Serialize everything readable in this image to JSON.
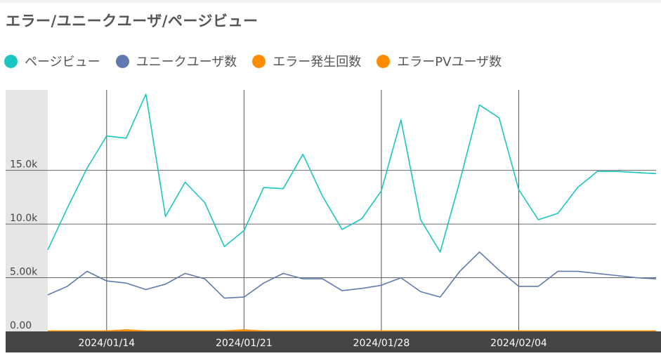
{
  "title": "エラー/ユニークユーザ/ページビュー",
  "legend": [
    {
      "label": "ページビュー",
      "color": "#1bc6c2"
    },
    {
      "label": "ユニークユーザ数",
      "color": "#6079af"
    },
    {
      "label": "エラー発生回数",
      "color": "#ff8c00"
    },
    {
      "label": "エラーPVユーザ数",
      "color": "#ff8c00"
    }
  ],
  "chart_data": {
    "type": "line",
    "x": [
      "2024-01-11",
      "2024-01-12",
      "2024-01-13",
      "2024-01-14",
      "2024-01-15",
      "2024-01-16",
      "2024-01-17",
      "2024-01-18",
      "2024-01-19",
      "2024-01-20",
      "2024-01-21",
      "2024-01-22",
      "2024-01-23",
      "2024-01-24",
      "2024-01-25",
      "2024-01-26",
      "2024-01-27",
      "2024-01-28",
      "2024-01-29",
      "2024-01-30",
      "2024-01-31",
      "2024-02-01",
      "2024-02-02",
      "2024-02-03",
      "2024-02-04",
      "2024-02-05",
      "2024-02-06",
      "2024-02-07",
      "2024-02-08",
      "2024-02-09",
      "2024-02-10",
      "2024-02-11"
    ],
    "series": [
      {
        "name": "ページビュー",
        "color": "#1bc6c2",
        "values": [
          7600,
          11500,
          15200,
          18200,
          18000,
          22100,
          10700,
          13900,
          12000,
          7900,
          9400,
          13400,
          13300,
          16500,
          12600,
          9500,
          10500,
          13100,
          19700,
          10400,
          7400,
          14000,
          21100,
          19900,
          13200,
          10400,
          11000,
          13400,
          14900,
          14900,
          14800,
          14700
        ]
      },
      {
        "name": "ユニークユーザ数",
        "color": "#6079af",
        "values": [
          3400,
          4200,
          5600,
          4700,
          4500,
          3900,
          4400,
          5400,
          4900,
          3100,
          3200,
          4500,
          5400,
          4900,
          4900,
          3800,
          4000,
          4300,
          5000,
          3700,
          3200,
          5600,
          7400,
          5700,
          4200,
          4200,
          5600,
          5600,
          5400,
          5200,
          5000,
          4900
        ]
      },
      {
        "name": "エラー発生回数",
        "color": "#ff8c00",
        "values": [
          0,
          0,
          0,
          0,
          100,
          0,
          0,
          0,
          0,
          0,
          100,
          0,
          0,
          0,
          0,
          0,
          0,
          0,
          0,
          0,
          0,
          0,
          0,
          0,
          0,
          0,
          0,
          0,
          0,
          0,
          0,
          0
        ]
      },
      {
        "name": "エラーPVユーザ数",
        "color": "#ff8c00",
        "values": [
          0,
          0,
          0,
          0,
          0,
          0,
          0,
          0,
          0,
          0,
          0,
          0,
          0,
          0,
          0,
          0,
          0,
          0,
          0,
          0,
          0,
          0,
          0,
          0,
          0,
          0,
          0,
          0,
          0,
          0,
          0,
          0
        ]
      }
    ],
    "yticks": [
      {
        "value": 0,
        "label": "0.00"
      },
      {
        "value": 5000,
        "label": "5.00k"
      },
      {
        "value": 10000,
        "label": "10.0k"
      },
      {
        "value": 15000,
        "label": "15.0k"
      }
    ],
    "xticks": [
      {
        "date": "2024-01-14",
        "label": "2024/01/14"
      },
      {
        "date": "2024-01-21",
        "label": "2024/01/21"
      },
      {
        "date": "2024-01-28",
        "label": "2024/01/28"
      },
      {
        "date": "2024-02-04",
        "label": "2024/02/04"
      }
    ],
    "ylim": [
      0,
      22500
    ],
    "grid": true,
    "legend_position": "top-left"
  }
}
